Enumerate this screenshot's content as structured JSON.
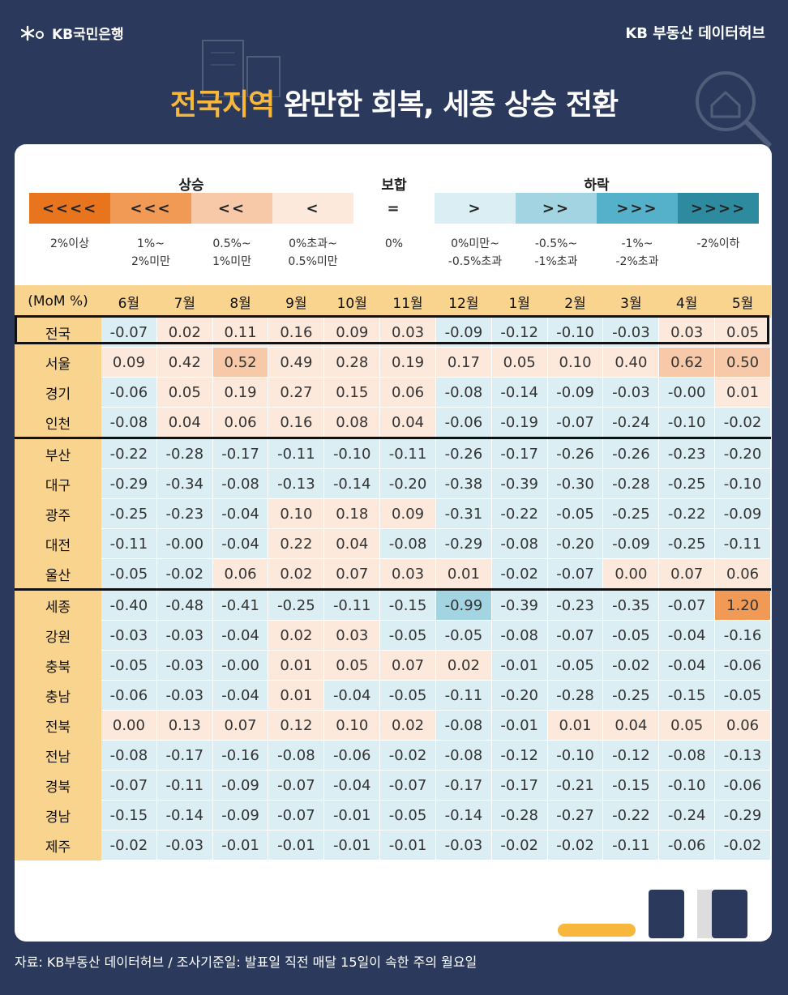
{
  "header": {
    "logo_text": "KB국민은행",
    "brand": "KB 부동산 데이터허브",
    "title_highlight": "전국지역",
    "title_rest": " 완만한 회복, 세종 상승 전환"
  },
  "legend": {
    "groups": [
      "상승",
      "보합",
      "하락"
    ],
    "items": [
      {
        "symbol": "<<<<",
        "label1": "2%이상",
        "label2": "",
        "color": "#e8741e"
      },
      {
        "symbol": "<<<",
        "label1": "1%~",
        "label2": "2%미만",
        "color": "#f19a55"
      },
      {
        "symbol": "<<",
        "label1": "0.5%~",
        "label2": "1%미만",
        "color": "#f8c9a8"
      },
      {
        "symbol": "<",
        "label1": "0%초과~",
        "label2": "0.5%미만",
        "color": "#fde8dc"
      },
      {
        "symbol": "=",
        "label1": "0%",
        "label2": "",
        "color": "#ffffff"
      },
      {
        "symbol": ">",
        "label1": "0%미만~",
        "label2": "-0.5%초과",
        "color": "#dbeef3"
      },
      {
        "symbol": ">>",
        "label1": "-0.5%~",
        "label2": "-1%초과",
        "color": "#a3d4e2"
      },
      {
        "symbol": ">>>",
        "label1": "-1%~",
        "label2": "-2%초과",
        "color": "#55b0c9"
      },
      {
        "symbol": ">>>>",
        "label1": "-2%이하",
        "label2": "",
        "color": "#2e8a9e"
      }
    ]
  },
  "chart_data": {
    "type": "heatmap",
    "unit_label": "(MoM %)",
    "columns": [
      "6월",
      "7월",
      "8월",
      "9월",
      "10월",
      "11월",
      "12월",
      "1월",
      "2월",
      "3월",
      "4월",
      "5월"
    ],
    "rows": [
      {
        "region": "전국",
        "values": [
          -0.07,
          0.02,
          0.11,
          0.16,
          0.09,
          0.03,
          -0.09,
          -0.12,
          -0.1,
          -0.03,
          0.03,
          0.05
        ]
      },
      {
        "region": "서울",
        "values": [
          0.09,
          0.42,
          0.52,
          0.49,
          0.28,
          0.19,
          0.17,
          0.05,
          0.1,
          0.4,
          0.62,
          0.5
        ]
      },
      {
        "region": "경기",
        "values": [
          -0.06,
          0.05,
          0.19,
          0.27,
          0.15,
          0.06,
          -0.08,
          -0.14,
          -0.09,
          -0.03,
          -0.0,
          0.01
        ]
      },
      {
        "region": "인천",
        "values": [
          -0.08,
          0.04,
          0.06,
          0.16,
          0.08,
          0.04,
          -0.06,
          -0.19,
          -0.07,
          -0.24,
          -0.1,
          -0.02
        ]
      },
      {
        "region": "부산",
        "values": [
          -0.22,
          -0.28,
          -0.17,
          -0.11,
          -0.1,
          -0.11,
          -0.26,
          -0.17,
          -0.26,
          -0.26,
          -0.23,
          -0.2
        ]
      },
      {
        "region": "대구",
        "values": [
          -0.29,
          -0.34,
          -0.08,
          -0.13,
          -0.14,
          -0.2,
          -0.38,
          -0.39,
          -0.3,
          -0.28,
          -0.25,
          -0.1
        ]
      },
      {
        "region": "광주",
        "values": [
          -0.25,
          -0.23,
          -0.04,
          0.1,
          0.18,
          0.09,
          -0.31,
          -0.22,
          -0.05,
          -0.25,
          -0.22,
          -0.09
        ]
      },
      {
        "region": "대전",
        "values": [
          -0.11,
          -0.0,
          -0.04,
          0.22,
          0.04,
          -0.08,
          -0.29,
          -0.08,
          -0.2,
          -0.09,
          -0.25,
          -0.11
        ]
      },
      {
        "region": "울산",
        "values": [
          -0.05,
          -0.02,
          0.06,
          0.02,
          0.07,
          0.03,
          0.01,
          -0.02,
          -0.07,
          0.0,
          0.07,
          0.06
        ]
      },
      {
        "region": "세종",
        "values": [
          -0.4,
          -0.48,
          -0.41,
          -0.25,
          -0.11,
          -0.15,
          -0.99,
          -0.39,
          -0.23,
          -0.35,
          -0.07,
          1.2
        ]
      },
      {
        "region": "강원",
        "values": [
          -0.03,
          -0.03,
          -0.04,
          0.02,
          0.03,
          -0.05,
          -0.05,
          -0.08,
          -0.07,
          -0.05,
          -0.04,
          -0.16
        ]
      },
      {
        "region": "충북",
        "values": [
          -0.05,
          -0.03,
          -0.0,
          0.01,
          0.05,
          0.07,
          0.02,
          -0.01,
          -0.05,
          -0.02,
          -0.04,
          -0.06
        ]
      },
      {
        "region": "충남",
        "values": [
          -0.06,
          -0.03,
          -0.04,
          0.01,
          -0.04,
          -0.05,
          -0.11,
          -0.2,
          -0.28,
          -0.25,
          -0.15,
          -0.05
        ]
      },
      {
        "region": "전북",
        "values": [
          0.0,
          0.13,
          0.07,
          0.12,
          0.1,
          0.02,
          -0.08,
          -0.01,
          0.01,
          0.04,
          0.05,
          0.06
        ]
      },
      {
        "region": "전남",
        "values": [
          -0.08,
          -0.17,
          -0.16,
          -0.08,
          -0.06,
          -0.02,
          -0.08,
          -0.12,
          -0.1,
          -0.12,
          -0.08,
          -0.13
        ]
      },
      {
        "region": "경북",
        "values": [
          -0.07,
          -0.11,
          -0.09,
          -0.07,
          -0.04,
          -0.07,
          -0.17,
          -0.17,
          -0.21,
          -0.15,
          -0.1,
          -0.06
        ]
      },
      {
        "region": "경남",
        "values": [
          -0.15,
          -0.14,
          -0.09,
          -0.07,
          -0.01,
          -0.05,
          -0.14,
          -0.28,
          -0.27,
          -0.22,
          -0.24,
          -0.29
        ]
      },
      {
        "region": "제주",
        "values": [
          -0.02,
          -0.03,
          -0.01,
          -0.01,
          -0.01,
          -0.01,
          -0.03,
          -0.02,
          -0.02,
          -0.11,
          -0.06,
          -0.02
        ]
      }
    ],
    "group_separator_before": [
      "부산",
      "세종"
    ]
  },
  "footer": {
    "source": "자료: KB부동산 데이터허브 / 조사기준일: 발표일 직전 매달 15일이 속한 주의 월요일"
  }
}
